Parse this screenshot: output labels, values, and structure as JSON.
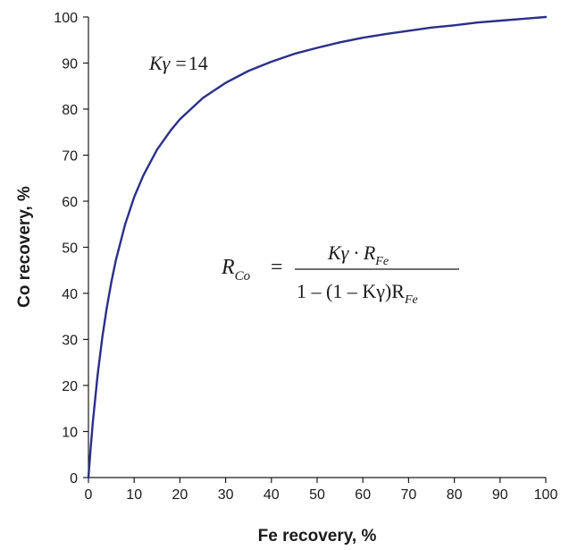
{
  "chart_data": {
    "type": "line",
    "title": "",
    "xlabel": "Fe recovery, %",
    "ylabel": "Co recovery, %",
    "xlim": [
      0,
      100
    ],
    "ylim": [
      0,
      100
    ],
    "x_ticks": [
      0,
      10,
      20,
      30,
      40,
      50,
      60,
      70,
      80,
      90,
      100
    ],
    "y_ticks": [
      0,
      10,
      20,
      30,
      40,
      50,
      60,
      70,
      80,
      90,
      100
    ],
    "grid": false,
    "legend": "none",
    "line_color": "#2b2f8a",
    "series": [
      {
        "Kgamma": 14,
        "x": [
          0,
          0.5,
          1,
          2,
          3,
          4,
          5,
          6,
          8,
          10,
          12,
          15,
          18,
          20,
          25,
          30,
          35,
          40,
          45,
          50,
          55,
          60,
          65,
          70,
          75,
          80,
          85,
          90,
          95,
          100
        ],
        "y": [
          0,
          6.6,
          12.4,
          22.2,
          30.2,
          36.8,
          42.4,
          47.2,
          54.9,
          60.9,
          65.6,
          71.2,
          75.4,
          77.8,
          82.4,
          85.7,
          88.3,
          90.3,
          92.0,
          93.3,
          94.5,
          95.5,
          96.3,
          97.0,
          97.7,
          98.2,
          98.8,
          99.2,
          99.6,
          100
        ]
      }
    ],
    "annotations": {
      "kgamma_lhs": "Kγ",
      "kgamma_eq": "=",
      "kgamma_val": "14",
      "formula_lhs_base": "R",
      "formula_lhs_sub": "Co",
      "formula_eq": "=",
      "formula_num_main": "Kγ · R",
      "formula_num_sub": "Fe",
      "formula_den_main": "1 – (1 – Kγ)R",
      "formula_den_sub": "Fe"
    }
  }
}
